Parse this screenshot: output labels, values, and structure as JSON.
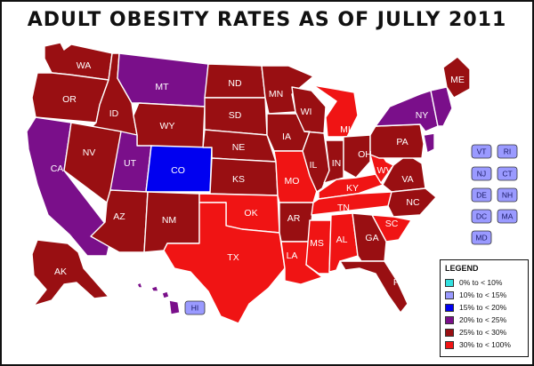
{
  "title": "ADULT OBESITY RATES AS OF JULLY 2011",
  "colors": {
    "c0": "#33e0e0",
    "c10": "#9a9aff",
    "c15": "#0000f0",
    "c20": "#7a0f8a",
    "c25": "#990f12",
    "c30": "#f01414"
  },
  "legend": {
    "title": "LEGEND",
    "items": [
      {
        "label": "0% to < 10%",
        "color": "#33e0e0"
      },
      {
        "label": "10% to < 15%",
        "color": "#9a9aff"
      },
      {
        "label": "15% to < 20%",
        "color": "#0000f0"
      },
      {
        "label": "20% to < 25%",
        "color": "#7a0f8a"
      },
      {
        "label": "25% to < 30%",
        "color": "#990f12"
      },
      {
        "label": "30% to < 100%",
        "color": "#f01414"
      }
    ]
  },
  "states": {
    "WA": "WA",
    "OR": "OR",
    "CA": "CA",
    "ID": "ID",
    "NV": "NV",
    "MT": "MT",
    "WY": "WY",
    "UT": "UT",
    "CO": "CO",
    "AZ": "AZ",
    "NM": "NM",
    "ND": "ND",
    "SD": "SD",
    "NE": "NE",
    "KS": "KS",
    "OK": "OK",
    "TX": "TX",
    "MN": "MN",
    "IA": "IA",
    "MO": "MO",
    "AR": "AR",
    "LA": "LA",
    "WI": "WI",
    "IL": "IL",
    "MS": "MS",
    "MI": "MI",
    "IN": "IN",
    "KY": "KY",
    "TN": "TN",
    "AL": "AL",
    "OH": "OH",
    "WV": "WV",
    "VA": "VA",
    "NC": "NC",
    "SC": "SC",
    "GA": "GA",
    "FL": "FL",
    "PA": "PA",
    "NY": "NY",
    "ME": "ME",
    "AK": "AK",
    "HI": "HI"
  },
  "small_states": [
    "VT",
    "RI",
    "NJ",
    "CT",
    "DE",
    "NH",
    "DC",
    "MA",
    "MD"
  ]
}
